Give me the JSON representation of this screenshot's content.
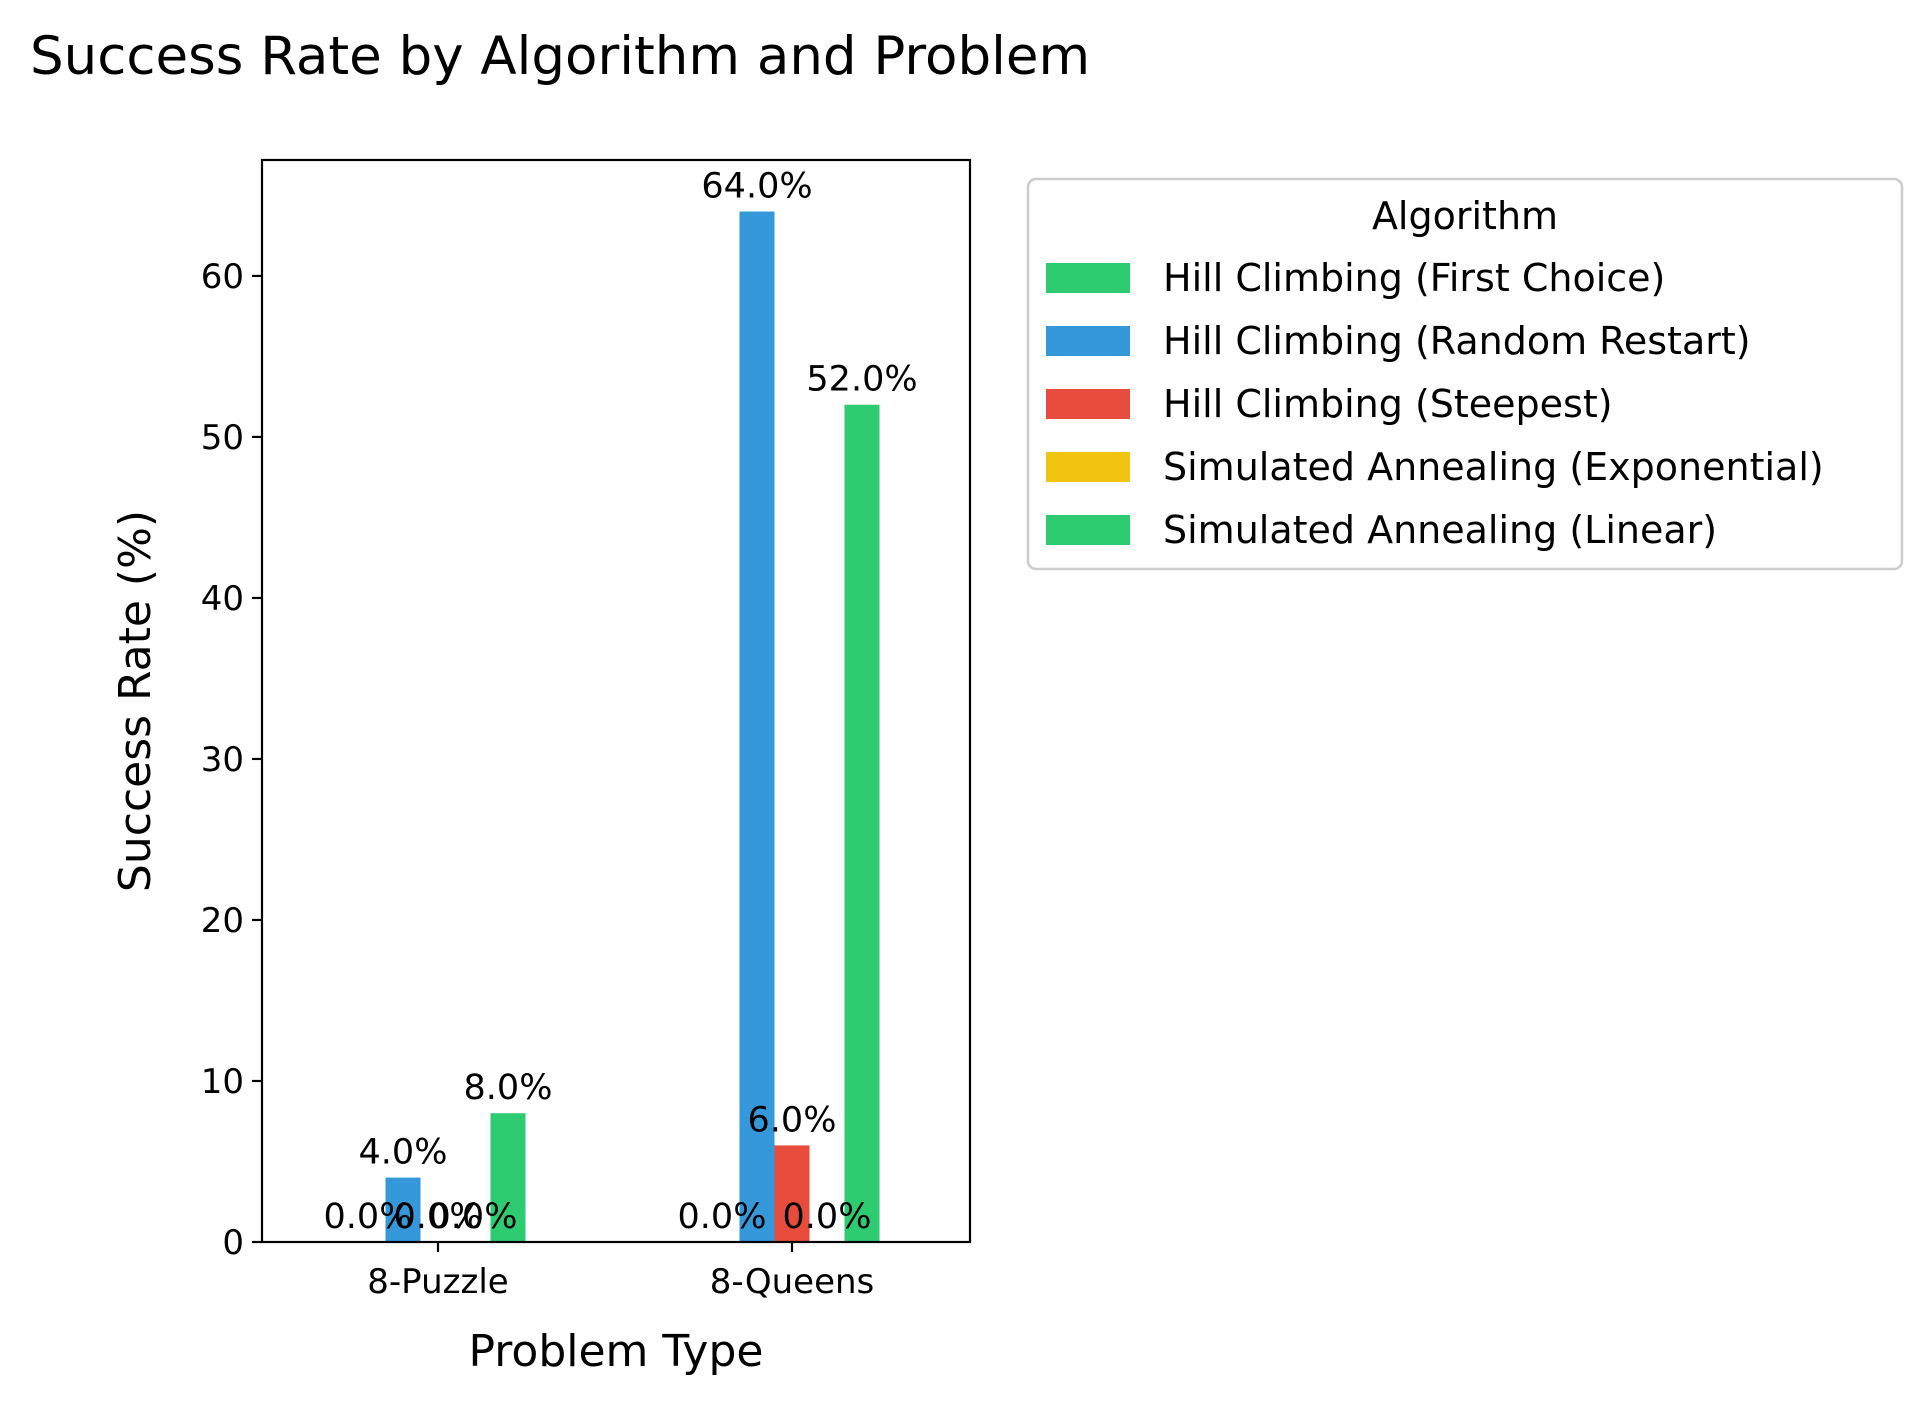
{
  "chart_data": {
    "type": "bar",
    "title": "Success Rate by Algorithm and Problem",
    "xlabel": "Problem Type",
    "ylabel": "Success Rate (%)",
    "categories": [
      "8-Puzzle",
      "8-Queens"
    ],
    "ylim": [
      0,
      67.2
    ],
    "yticks": [
      0,
      10,
      20,
      30,
      40,
      50,
      60
    ],
    "grid": false,
    "legend": {
      "title": "Algorithm",
      "placement": "outside-right-top"
    },
    "series": [
      {
        "name": "Hill Climbing (First Choice)",
        "color": "#2ecc71",
        "values": [
          0.0,
          0.0
        ],
        "labels": [
          "0.0%",
          "0.0%"
        ]
      },
      {
        "name": "Hill Climbing (Random Restart)",
        "color": "#3498db",
        "values": [
          4.0,
          64.0
        ],
        "labels": [
          "4.0%",
          "64.0%"
        ]
      },
      {
        "name": "Hill Climbing (Steepest)",
        "color": "#e74c3c",
        "values": [
          0.0,
          6.0
        ],
        "labels": [
          "0.0%",
          "6.0%"
        ]
      },
      {
        "name": "Simulated Annealing (Exponential)",
        "color": "#f1c40f",
        "values": [
          0.0,
          0.0
        ],
        "labels": [
          "0.0%",
          "0.0%"
        ]
      },
      {
        "name": "Simulated Annealing (Linear)",
        "color": "#2ecc71",
        "values": [
          8.0,
          52.0
        ],
        "labels": [
          "8.0%",
          "52.0%"
        ]
      }
    ]
  }
}
